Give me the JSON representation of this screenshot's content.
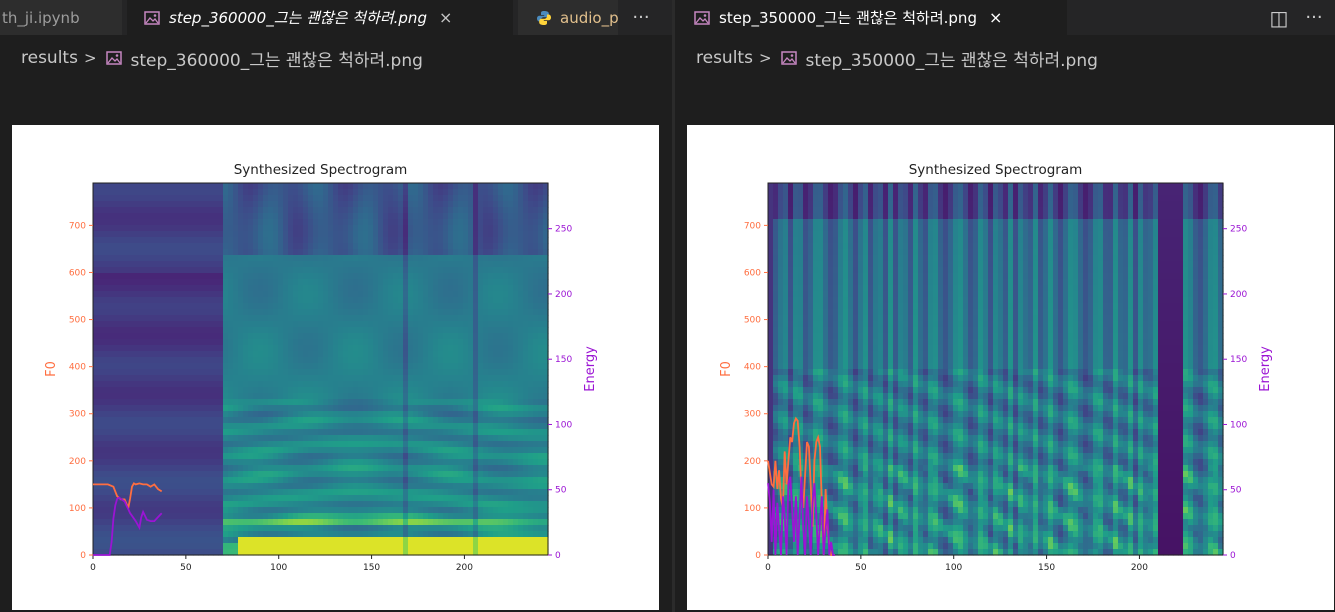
{
  "left": {
    "tabs": [
      {
        "label": "th_ji.ipynb",
        "icon": "none",
        "state": "inactive"
      },
      {
        "label": "step_360000_그는 괜찮은 척하려.png",
        "icon": "image-icon",
        "state": "active",
        "italic": true,
        "close": "×"
      },
      {
        "label": "audio_p",
        "icon": "python-icon",
        "state": "inactive"
      }
    ],
    "more_label": "···",
    "breadcrumb": {
      "folder": "results",
      "sep": ">",
      "file": "step_360000_그는 괜찮은 척하려.png"
    },
    "image": {
      "title": "Synthesized Spectrogram",
      "ylabel_left": "F0",
      "ylabel_right": "Energy",
      "xticks": [
        "0",
        "50",
        "100",
        "150",
        "200"
      ],
      "yticks_left": [
        "0",
        "100",
        "200",
        "300",
        "400",
        "500",
        "600",
        "700"
      ],
      "yticks_right": [
        "0",
        "50",
        "100",
        "150",
        "200",
        "250"
      ]
    },
    "chart_data": {
      "type": "heatmap",
      "title": "Synthesized Spectrogram",
      "xlim": [
        0,
        245
      ],
      "ylim_left": [
        0,
        790
      ],
      "ylim_right": [
        0,
        285
      ],
      "series": [
        {
          "name": "F0",
          "axis": "left",
          "color": "#ff6e40",
          "x": [
            0,
            4,
            8,
            11,
            13,
            15,
            17,
            19,
            20,
            21,
            22,
            23,
            25,
            27,
            29,
            31,
            33,
            35,
            37
          ],
          "y": [
            150,
            150,
            150,
            145,
            125,
            118,
            118,
            100,
            120,
            145,
            152,
            150,
            152,
            150,
            150,
            145,
            150,
            140,
            135
          ]
        },
        {
          "name": "Energy",
          "axis": "right",
          "color": "#9b14d4",
          "x": [
            0,
            4,
            7,
            9,
            10,
            11,
            12,
            13,
            14,
            15,
            17,
            19,
            20,
            21,
            23,
            25,
            26,
            27,
            29,
            31,
            33,
            35,
            37
          ],
          "y": [
            0,
            0,
            0,
            0,
            10,
            28,
            38,
            43,
            44,
            43,
            41,
            35,
            32,
            30,
            26,
            21,
            29,
            33,
            27,
            26,
            26,
            29,
            32
          ]
        }
      ]
    }
  },
  "right": {
    "tabs": [
      {
        "label": "step_350000_그는 괜찮은 척하려.png",
        "icon": "image-icon",
        "state": "active",
        "close": "×"
      }
    ],
    "split_label": "◫",
    "more_label": "···",
    "breadcrumb": {
      "folder": "results",
      "sep": ">",
      "file": "step_350000_그는 괜찮은 척하려.png"
    },
    "image": {
      "title": "Synthesized Spectrogram",
      "ylabel_left": "F0",
      "ylabel_right": "Energy",
      "xticks": [
        "0",
        "50",
        "100",
        "150",
        "200"
      ],
      "yticks_left": [
        "0",
        "100",
        "200",
        "300",
        "400",
        "500",
        "600",
        "700"
      ],
      "yticks_right": [
        "0",
        "50",
        "100",
        "150",
        "200",
        "250"
      ]
    },
    "chart_data": {
      "type": "heatmap",
      "title": "Synthesized Spectrogram",
      "xlim": [
        0,
        245
      ],
      "ylim_left": [
        0,
        790
      ],
      "ylim_right": [
        0,
        285
      ],
      "series": [
        {
          "name": "F0",
          "axis": "left",
          "color": "#ff6e40",
          "x": [
            0,
            2,
            3,
            4,
            5,
            6,
            7,
            8,
            9,
            10,
            11,
            12,
            13,
            14,
            15,
            16,
            17,
            18,
            19,
            20,
            21,
            22,
            23,
            24,
            25,
            26,
            27,
            28,
            29,
            30,
            31,
            32,
            33,
            34,
            35,
            36
          ],
          "y": [
            200,
            150,
            145,
            200,
            140,
            180,
            120,
            100,
            220,
            150,
            200,
            250,
            240,
            280,
            290,
            285,
            230,
            130,
            100,
            170,
            240,
            230,
            150,
            60,
            200,
            240,
            250,
            230,
            100,
            0,
            140,
            60,
            20,
            0,
            0,
            0
          ]
        },
        {
          "name": "Energy",
          "axis": "right",
          "color": "#9b14d4",
          "x": [
            0,
            1,
            2,
            3,
            4,
            5,
            6,
            7,
            8,
            9,
            10,
            11,
            12,
            13,
            14,
            15,
            16,
            17,
            18,
            19,
            20,
            21,
            22,
            23,
            24,
            25,
            26,
            27,
            28,
            29,
            30,
            31,
            32,
            33,
            34,
            35,
            36
          ],
          "y": [
            55,
            40,
            10,
            50,
            0,
            40,
            20,
            0,
            45,
            30,
            0,
            55,
            60,
            35,
            10,
            45,
            0,
            30,
            60,
            20,
            0,
            45,
            25,
            0,
            40,
            55,
            30,
            0,
            25,
            45,
            0,
            20,
            35,
            0,
            10,
            0,
            0
          ]
        }
      ]
    }
  }
}
